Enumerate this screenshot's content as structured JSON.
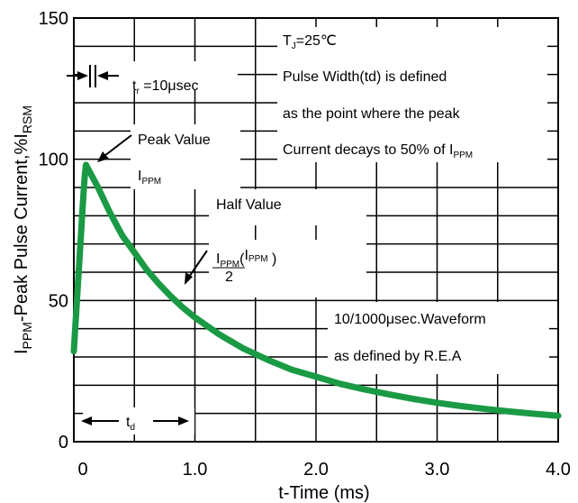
{
  "chart_data": {
    "type": "line",
    "title": "",
    "xlabel": "t-Time (ms)",
    "ylabel": {
      "main": "I",
      "sub1": "PPM",
      "mid": "-Peak Pulse Current,%I",
      "sub2": "RSM"
    },
    "xlim": [
      0,
      4.0
    ],
    "ylim": [
      0,
      150
    ],
    "x_ticks": [
      0,
      1.0,
      2.0,
      3.0,
      4.0
    ],
    "x_tick_labels": [
      "0",
      "1.0",
      "2.0",
      "3.0",
      "4.0"
    ],
    "y_ticks": [
      0,
      50,
      100,
      150
    ],
    "y_tick_labels": [
      "0",
      "50",
      "100",
      "150"
    ],
    "grid": true,
    "series": [
      {
        "name": "",
        "color": "#1a9a44",
        "x": [
          0,
          0.01,
          0.02,
          0.03,
          0.04,
          0.05,
          0.06,
          0.07,
          0.08,
          0.09,
          0.1,
          0.2,
          0.3,
          0.4,
          0.5,
          0.6,
          0.7,
          0.8,
          0.9,
          1.0,
          1.2,
          1.4,
          1.6,
          1.8,
          2.0,
          2.2,
          2.4,
          2.6,
          2.8,
          3.0,
          3.2,
          3.4,
          3.6,
          3.8,
          4.0
        ],
        "y": [
          32,
          39,
          46,
          53,
          60,
          67,
          74,
          81,
          88,
          94,
          98,
          90,
          81,
          73,
          67,
          61,
          56,
          51.5,
          47.5,
          44,
          38,
          33,
          29,
          25.5,
          23,
          20.5,
          18.5,
          16.8,
          15.2,
          13.8,
          12.6,
          11.6,
          10.7,
          9.9,
          9.2
        ]
      }
    ],
    "annotations": {
      "tj": {
        "main": "T",
        "sub": "J",
        "tail": "=25℃"
      },
      "pulse_width_lines": [
        "Pulse Width(td) is defined",
        "as the point where the peak"
      ],
      "current_decays": {
        "main": "Current decays to 50% of I",
        "sub": "PPM"
      },
      "tr": {
        "main": "t",
        "sub": "r",
        "tail": " =10μsec"
      },
      "peak_value": "Peak Value",
      "ippm": {
        "main": "I",
        "sub": "PPM"
      },
      "half_value": "Half Value",
      "half_formula": {
        "main": "I",
        "sub": "PPM",
        "paren_open": "(",
        "num_main": "I",
        "num_sub": "PPM",
        "den": "2",
        "paren_close": " )"
      },
      "waveform_lines": [
        "10/1000μsec.Waveform",
        "as defined by R.E.A"
      ],
      "td": {
        "main": "t",
        "sub": "d"
      }
    }
  }
}
